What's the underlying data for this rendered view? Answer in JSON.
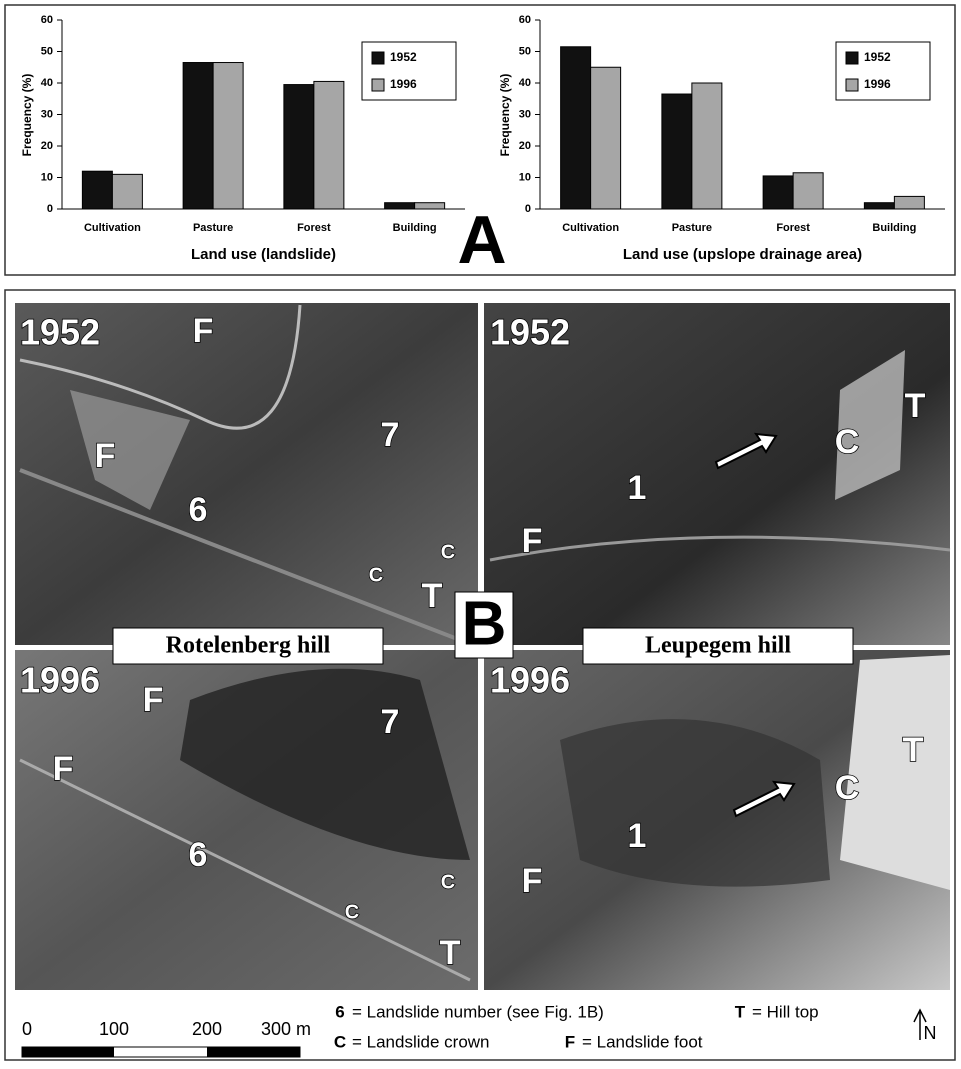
{
  "chart_data": [
    {
      "type": "bar",
      "x_label": "Land use (landslide)",
      "y_label": "Frequency (%)",
      "categories": [
        "Cultivation",
        "Pasture",
        "Forest",
        "Building"
      ],
      "series": [
        {
          "name": "1952",
          "color": "#111111",
          "values": [
            12,
            46.5,
            39.5,
            2
          ]
        },
        {
          "name": "1996",
          "color": "#a6a6a6",
          "values": [
            11,
            46.5,
            40.5,
            2
          ]
        }
      ],
      "ylim": [
        0,
        60
      ],
      "yticks": [
        0,
        10,
        20,
        30,
        40,
        50,
        60
      ],
      "grid": false,
      "legend": "upper right"
    },
    {
      "type": "bar",
      "x_label": "Land use (upslope drainage area)",
      "y_label": "Frequency (%)",
      "categories": [
        "Cultivation",
        "Pasture",
        "Forest",
        "Building"
      ],
      "series": [
        {
          "name": "1952",
          "color": "#111111",
          "values": [
            51.5,
            36.5,
            10.5,
            2
          ]
        },
        {
          "name": "1996",
          "color": "#a6a6a6",
          "values": [
            45,
            40,
            11.5,
            4
          ]
        }
      ],
      "ylim": [
        0,
        60
      ],
      "yticks": [
        0,
        10,
        20,
        30,
        40,
        50,
        60
      ],
      "grid": false,
      "legend": "upper right"
    }
  ],
  "panel_a": "A",
  "panel_b": "B",
  "hills": [
    "Rotelenberg hill",
    "Leupegem hill"
  ],
  "photos": [
    {
      "year": "1952",
      "labels": [
        "F",
        "F",
        "6",
        "7",
        "C",
        "C",
        "T"
      ]
    },
    {
      "year": "1952",
      "labels": [
        "T",
        "C",
        "1",
        "F"
      ]
    },
    {
      "year": "1996",
      "labels": [
        "F",
        "F",
        "7",
        "6",
        "C",
        "C",
        "T"
      ]
    },
    {
      "year": "1996",
      "labels": [
        "T",
        "C",
        "1",
        "F"
      ]
    }
  ],
  "legend": [
    {
      "symbol": "6",
      "text": "= Landslide number (see Fig. 1B)"
    },
    {
      "symbol": "T",
      "text": "= Hill top"
    },
    {
      "symbol": "C",
      "text": "= Landslide crown"
    },
    {
      "symbol": "F",
      "text": "= Landslide foot"
    }
  ],
  "scale_bar": [
    "0",
    "100",
    "200",
    "300 m"
  ],
  "north": "N"
}
